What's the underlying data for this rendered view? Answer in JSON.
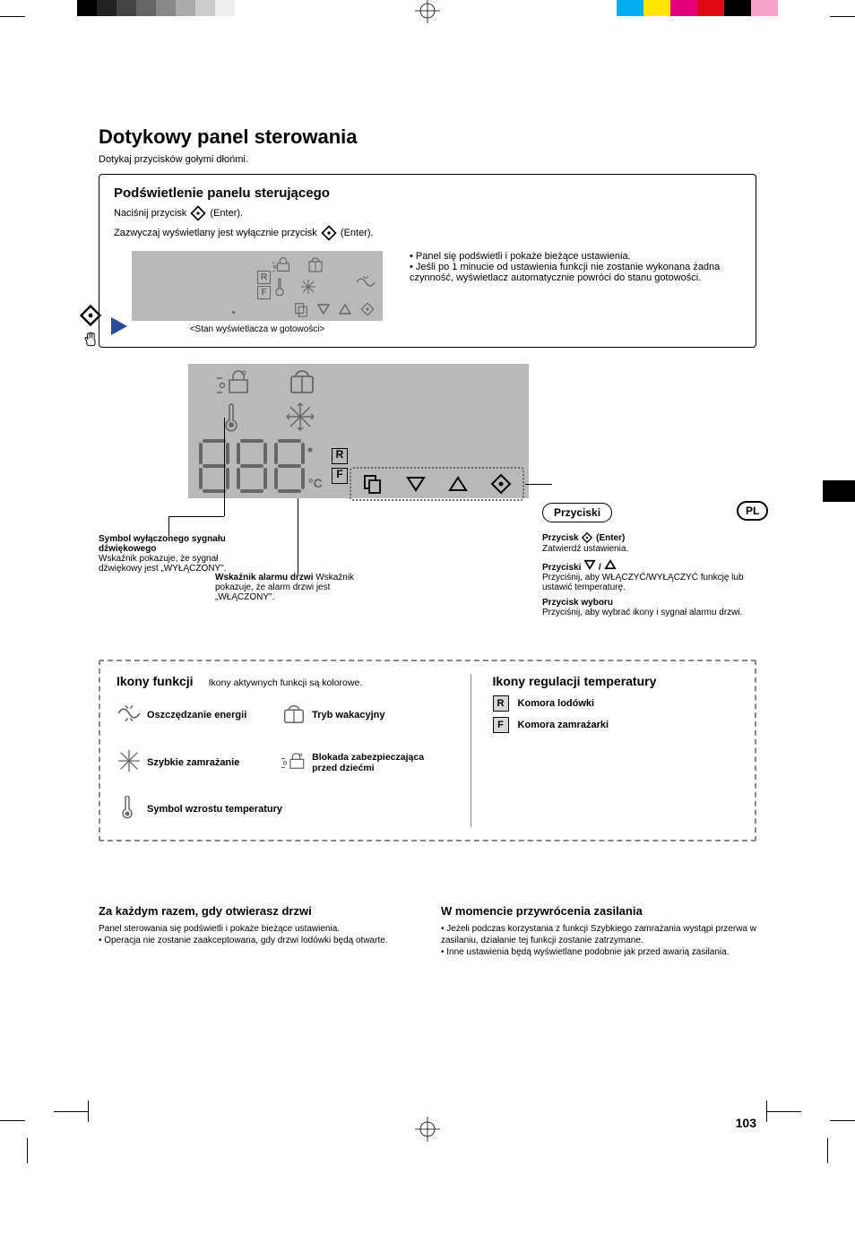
{
  "print": {
    "left_grey_bar": [
      "#000000",
      "#222222",
      "#444444",
      "#666666",
      "#888888",
      "#aaaaaa",
      "#cccccc",
      "#eeeeee"
    ],
    "right_color_bar": [
      "#00aeef",
      "#ffe600",
      "#e5007e",
      "#e30613",
      "#000000",
      "#f5a3c7"
    ]
  },
  "header": {
    "title": "Dotykowy panel sterowania",
    "subtitle": "Dotykaj przycisków gołymi dłońmi."
  },
  "backlight_panel": {
    "title": "Podświetlenie panelu sterującego",
    "line1_pre": "Naciśnij przycisk ",
    "line1_post": " (Enter).",
    "line2_pre": "Zazwyczaj wyświetlany jest wyłącznie przycisk ",
    "line2_post": " (Enter).",
    "standby_caption": "<Stan wyświetlacza w gotowości>",
    "bullets": [
      "Panel się podświetli i pokaże bieżące ustawienia.",
      "Jeśli po 1 minucie od ustawienia funkcji nie zostanie wykonana żadna czynność, wyświetlacz automatycznie powróci do stanu gotowości."
    ]
  },
  "diagram": {
    "rf_labels": {
      "r": "R",
      "f": "F"
    },
    "left_note_title": "Symbol wyłączonego sygnału dźwiękowego",
    "left_note_body": "Wskaźnik pokazuje, że sygnał dźwiękowy jest „WYŁĄCZONY\".",
    "mid_note_title": "Wskaźnik alarmu drzwi",
    "mid_note_body": "Wskaźnik pokazuje, że alarm drzwi jest „WŁĄCZONY\".",
    "buttons_label": "Przyciski",
    "pl_label": "PL",
    "right_blocks": [
      {
        "title_pre": "Przycisk ",
        "title_post": " (Enter)",
        "body": "Zatwierdź ustawienia."
      },
      {
        "title_pre": "Przyciski ",
        "title_post": "",
        "body": "Przyciśnij, aby WŁĄCZYĆ/WYŁĄCZYĆ funkcję lub ustawić temperaturę."
      },
      {
        "title": "Przycisk wyboru",
        "body": "Przyciśnij, aby wybrać ikony i sygnał alarmu drzwi."
      }
    ]
  },
  "dashed_box": {
    "left_title": "Ikony funkcji",
    "left_sub": "Ikony aktywnych funkcji są kolorowe.",
    "items_left": [
      {
        "icon": "energy",
        "label": "Oszczędzanie energii"
      },
      {
        "icon": "freeze",
        "label": "Szybkie zamrażanie"
      },
      {
        "icon": "thermo",
        "label": "Symbol wzrostu temperatury"
      }
    ],
    "items_mid": [
      {
        "icon": "vacation",
        "label": "Tryb wakacyjny"
      },
      {
        "icon": "childlock",
        "label": "Blokada zabezpieczająca przed dziećmi"
      }
    ],
    "right_title": "Ikony regulacji temperatury",
    "items_right": [
      {
        "badge": "R",
        "label": "Komora lodówki"
      },
      {
        "badge": "F",
        "label": "Komora zamrażarki"
      }
    ]
  },
  "footer": {
    "left_title": "Za każdym razem, gdy otwierasz drzwi",
    "left_line1": "Panel sterowania się podświetli i pokaże bieżące ustawienia.",
    "left_line2": "Operacja nie zostanie zaakceptowana, gdy drzwi lodówki będą otwarte.",
    "right_title": "W momencie przywrócenia zasilania",
    "right_bullets": [
      "Jeżeli podczas korzystania z funkcji Szybkiego zamrażania wystąpi przerwa w zasilaniu, działanie tej funkcji zostanie zatrzymane.",
      "Inne ustawienia będą wyświetlane podobnie jak przed awarią zasilania."
    ]
  },
  "page_number": "103"
}
